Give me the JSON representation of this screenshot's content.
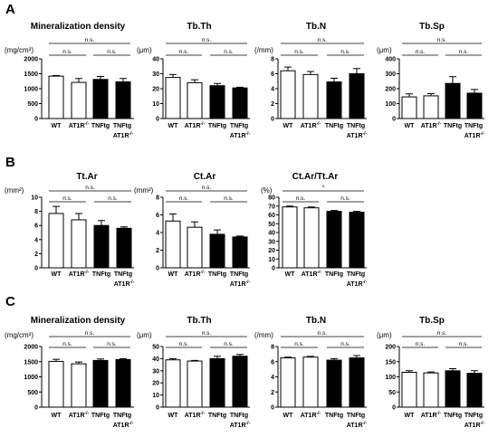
{
  "panel_labels": [
    "A",
    "B",
    "C"
  ],
  "colors": {
    "bar_fills": [
      "#ffffff",
      "#ffffff",
      "#000000",
      "#000000"
    ],
    "ink": "#000000",
    "background": "#ffffff"
  },
  "chart_data": [
    {
      "type": "bar",
      "title": "Mineralization density",
      "ylabel": "(mg/cm³)",
      "categories": [
        "WT",
        "AT1R-/-",
        "TNFtg",
        "TNFtg AT1R-/-"
      ],
      "values": [
        1420,
        1210,
        1310,
        1230
      ],
      "errors": [
        20,
        130,
        100,
        110
      ],
      "ylim": [
        0,
        2000
      ],
      "yticks": [
        0,
        500,
        1000,
        1500,
        2000
      ],
      "grid": false,
      "comparisons": [
        {
          "groups": [
            0,
            3
          ],
          "label": "n.s."
        },
        {
          "groups": [
            0,
            1
          ],
          "label": "n.s."
        },
        {
          "groups": [
            2,
            3
          ],
          "label": "n.s."
        }
      ]
    },
    {
      "type": "bar",
      "title": "Tb.Th",
      "ylabel": "(μm)",
      "categories": [
        "WT",
        "AT1R-/-",
        "TNFtg",
        "TNFtg AT1R-/-"
      ],
      "values": [
        27.5,
        24.0,
        22.0,
        20.5
      ],
      "errors": [
        2.0,
        2.0,
        1.5,
        0.5
      ],
      "ylim": [
        0,
        40
      ],
      "yticks": [
        0,
        10,
        20,
        30,
        40
      ],
      "grid": false,
      "comparisons": [
        {
          "groups": [
            0,
            3
          ],
          "label": "n.s."
        },
        {
          "groups": [
            0,
            1
          ],
          "label": "n.s."
        },
        {
          "groups": [
            2,
            3
          ],
          "label": "n.s."
        }
      ]
    },
    {
      "type": "bar",
      "title": "Tb.N",
      "ylabel": "(/mm)",
      "categories": [
        "WT",
        "AT1R-/-",
        "TNFtg",
        "TNFtg AT1R-/-"
      ],
      "values": [
        6.4,
        5.9,
        4.9,
        6.0
      ],
      "errors": [
        0.5,
        0.4,
        0.5,
        0.7
      ],
      "ylim": [
        0,
        8
      ],
      "yticks": [
        0,
        2,
        4,
        6,
        8
      ],
      "grid": false,
      "comparisons": [
        {
          "groups": [
            0,
            3
          ],
          "label": "n.s."
        },
        {
          "groups": [
            0,
            1
          ],
          "label": "n.s."
        },
        {
          "groups": [
            2,
            3
          ],
          "label": "n.s."
        }
      ]
    },
    {
      "type": "bar",
      "title": "Tb.Sp",
      "ylabel": "(μm)",
      "categories": [
        "WT",
        "AT1R-/-",
        "TNFtg",
        "TNFtg AT1R-/-"
      ],
      "values": [
        145,
        152,
        235,
        170
      ],
      "errors": [
        20,
        15,
        45,
        25
      ],
      "ylim": [
        0,
        400
      ],
      "yticks": [
        0,
        100,
        200,
        300,
        400
      ],
      "grid": false,
      "comparisons": [
        {
          "groups": [
            0,
            3
          ],
          "label": "n.s."
        },
        {
          "groups": [
            0,
            1
          ],
          "label": "n.s."
        },
        {
          "groups": [
            2,
            3
          ],
          "label": "n.s."
        }
      ]
    },
    {
      "type": "bar",
      "title": "Tt.Ar",
      "ylabel": "(mm²)",
      "categories": [
        "WT",
        "AT1R-/-",
        "TNFtg",
        "TNFtg AT1R-/-"
      ],
      "values": [
        7.7,
        6.8,
        6.0,
        5.6
      ],
      "errors": [
        1.0,
        0.9,
        0.7,
        0.2
      ],
      "ylim": [
        0,
        10
      ],
      "yticks": [
        0,
        2,
        4,
        6,
        8,
        10
      ],
      "grid": false,
      "comparisons": [
        {
          "groups": [
            0,
            3
          ],
          "label": "n.s."
        },
        {
          "groups": [
            0,
            1
          ],
          "label": "n.s."
        },
        {
          "groups": [
            2,
            3
          ],
          "label": "n.s."
        }
      ]
    },
    {
      "type": "bar",
      "title": "Ct.Ar",
      "ylabel": "(mm²)",
      "categories": [
        "WT",
        "AT1R-/-",
        "TNFtg",
        "TNFtg AT1R-/-"
      ],
      "values": [
        5.3,
        4.6,
        3.8,
        3.5
      ],
      "errors": [
        0.8,
        0.6,
        0.5,
        0.1
      ],
      "ylim": [
        0,
        8
      ],
      "yticks": [
        0,
        2,
        4,
        6,
        8
      ],
      "grid": false,
      "comparisons": [
        {
          "groups": [
            0,
            3
          ],
          "label": "n.s."
        },
        {
          "groups": [
            0,
            1
          ],
          "label": "n.s."
        },
        {
          "groups": [
            2,
            3
          ],
          "label": "n.s."
        }
      ]
    },
    {
      "type": "bar",
      "title": "Ct.Ar/Tt.Ar",
      "ylabel": "(%)",
      "categories": [
        "WT",
        "AT1R-/-",
        "TNFtg",
        "TNFtg AT1R-/-"
      ],
      "values": [
        69,
        68,
        64,
        63
      ],
      "errors": [
        1,
        1,
        1,
        1
      ],
      "ylim": [
        0,
        80
      ],
      "yticks": [
        0,
        10,
        20,
        30,
        40,
        50,
        60,
        70,
        80
      ],
      "grid": false,
      "comparisons": [
        {
          "groups": [
            0,
            3
          ],
          "label": "*"
        },
        {
          "groups": [
            0,
            1
          ],
          "label": "n.s."
        },
        {
          "groups": [
            2,
            3
          ],
          "label": "n.s."
        }
      ]
    },
    {
      "type": "bar",
      "title": "Mineralization density",
      "ylabel": "(mg/cm³)",
      "categories": [
        "WT",
        "AT1R-/-",
        "TNFtg",
        "TNFtg AT1R-/-"
      ],
      "values": [
        1510,
        1430,
        1540,
        1570
      ],
      "errors": [
        70,
        60,
        50,
        30
      ],
      "ylim": [
        0,
        2000
      ],
      "yticks": [
        0,
        500,
        1000,
        1500,
        2000
      ],
      "grid": false,
      "comparisons": [
        {
          "groups": [
            0,
            3
          ],
          "label": "n.s."
        },
        {
          "groups": [
            0,
            1
          ],
          "label": "n.s."
        },
        {
          "groups": [
            2,
            3
          ],
          "label": "n.s."
        }
      ]
    },
    {
      "type": "bar",
      "title": "Tb.Th",
      "ylabel": "(μm)",
      "categories": [
        "WT",
        "AT1R-/-",
        "TNFtg",
        "TNFtg AT1R-/-"
      ],
      "values": [
        39,
        38,
        40,
        42
      ],
      "errors": [
        1.0,
        0.5,
        2.0,
        1.5
      ],
      "ylim": [
        0,
        50
      ],
      "yticks": [
        0,
        10,
        20,
        30,
        40,
        50
      ],
      "grid": false,
      "comparisons": [
        {
          "groups": [
            0,
            3
          ],
          "label": "n.s."
        },
        {
          "groups": [
            0,
            1
          ],
          "label": "n.s."
        },
        {
          "groups": [
            2,
            3
          ],
          "label": "n.s."
        }
      ]
    },
    {
      "type": "bar",
      "title": "Tb.N",
      "ylabel": "(/mm)",
      "categories": [
        "WT",
        "AT1R-/-",
        "TNFtg",
        "TNFtg AT1R-/-"
      ],
      "values": [
        6.5,
        6.6,
        6.2,
        6.5
      ],
      "errors": [
        0.1,
        0.1,
        0.2,
        0.3
      ],
      "ylim": [
        0,
        8
      ],
      "yticks": [
        0,
        2,
        4,
        6,
        8
      ],
      "grid": false,
      "comparisons": [
        {
          "groups": [
            0,
            3
          ],
          "label": "n.s."
        },
        {
          "groups": [
            0,
            1
          ],
          "label": "n.s."
        },
        {
          "groups": [
            2,
            3
          ],
          "label": "n.s."
        }
      ]
    },
    {
      "type": "bar",
      "title": "Tb.Sp",
      "ylabel": "(μm)",
      "categories": [
        "WT",
        "AT1R-/-",
        "TNFtg",
        "TNFtg AT1R-/-"
      ],
      "values": [
        115,
        113,
        120,
        112
      ],
      "errors": [
        5,
        3,
        7,
        8
      ],
      "ylim": [
        0,
        200
      ],
      "yticks": [
        0,
        50,
        100,
        150,
        200
      ],
      "grid": false,
      "comparisons": [
        {
          "groups": [
            0,
            3
          ],
          "label": "n.s."
        },
        {
          "groups": [
            0,
            1
          ],
          "label": "n.s."
        },
        {
          "groups": [
            2,
            3
          ],
          "label": "n.s."
        }
      ]
    }
  ]
}
